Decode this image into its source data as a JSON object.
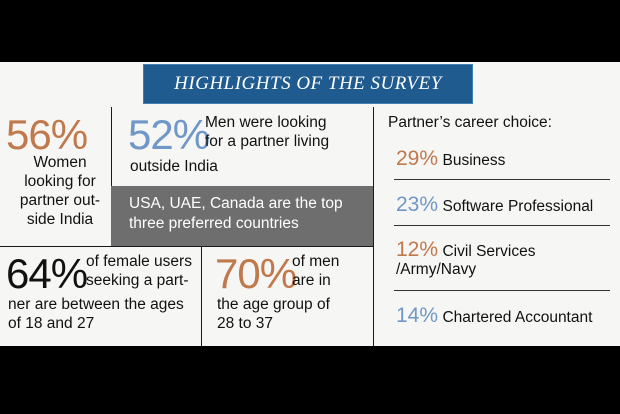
{
  "title": "HIGHLIGHTS OF THE SURVEY",
  "stat1": {
    "pct": "56%",
    "lines": [
      "Women",
      "looking for",
      "partner out-",
      "side India"
    ]
  },
  "stat2": {
    "pct": "52%",
    "lines": [
      "Men were looking",
      "for a partner living",
      "outside India"
    ]
  },
  "countries": {
    "lines": [
      "USA, UAE, Canada are the top",
      "three preferred countries"
    ]
  },
  "stat3": {
    "pct": "64%",
    "lines": [
      "of female users",
      "seeking a part-",
      "ner are between the ages",
      "of 18 and 27"
    ]
  },
  "stat4": {
    "pct": "70%",
    "lines": [
      "of men",
      "are in",
      "the age group of",
      "28 to 37"
    ]
  },
  "career": {
    "heading": "Partner’s career choice:",
    "items": [
      {
        "pct": "29%",
        "label": "Business",
        "color": "#c0784d"
      },
      {
        "pct": "23%",
        "label": "Software Professional",
        "color": "#6f97c7"
      },
      {
        "pct": "12%",
        "label": "Civil Services",
        "label2": "/Army/Navy",
        "color": "#c0784d"
      },
      {
        "pct": "14%",
        "label": "Chartered Accountant",
        "color": "#6f97c7"
      }
    ]
  },
  "colors": {
    "title_bar": "#1f5b8f",
    "orange": "#c0784d",
    "blue": "#6f97c7",
    "gray_box": "#6e6e6e"
  }
}
